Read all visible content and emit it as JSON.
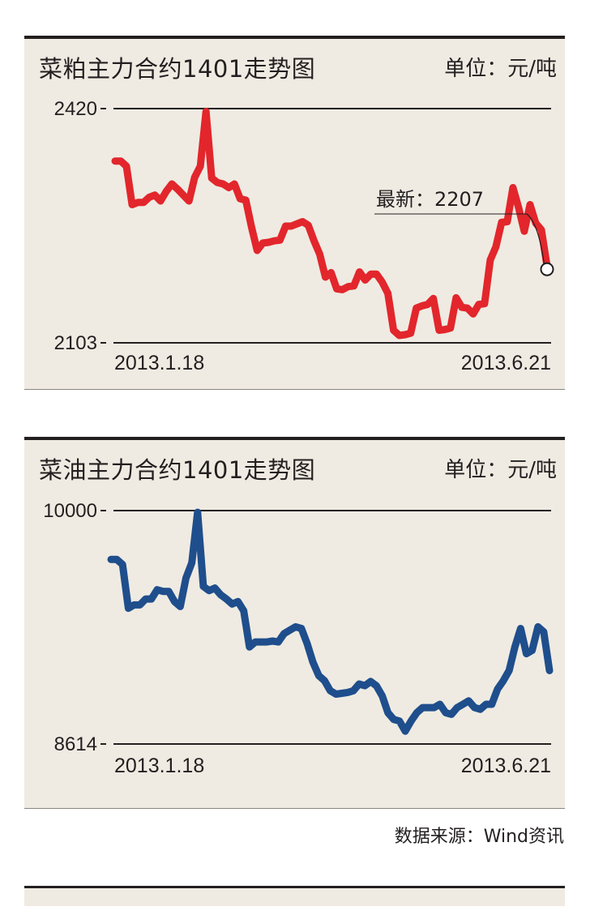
{
  "source": "数据来源：Wind资讯",
  "chart_data": [
    {
      "type": "line",
      "title": "菜粕主力合约1401走势图",
      "unit": "单位：元/吨",
      "ylim": [
        2103,
        2420
      ],
      "yticks": [
        "2420",
        "2103"
      ],
      "x_start_label": "2013.1.18",
      "x_end_label": "2013.6.21",
      "annotation": "最新：2207",
      "color": "#e2262c",
      "series": [
        {
          "values": [
            2349,
            2349,
            2342,
            2290,
            2293,
            2293,
            2300,
            2303,
            2295,
            2308,
            2318,
            2311,
            2303,
            2295,
            2327,
            2342,
            2416,
            2326,
            2320,
            2318,
            2313,
            2318,
            2298,
            2296,
            2260,
            2228,
            2238,
            2239,
            2241,
            2242,
            2261,
            2261,
            2264,
            2267,
            2262,
            2241,
            2223,
            2192,
            2198,
            2176,
            2175,
            2179,
            2180,
            2199,
            2188,
            2196,
            2196,
            2185,
            2170,
            2120,
            2113,
            2114,
            2116,
            2150,
            2153,
            2155,
            2163,
            2120,
            2121,
            2123,
            2164,
            2151,
            2150,
            2142,
            2155,
            2156,
            2215,
            2233,
            2266,
            2267,
            2313,
            2286,
            2254,
            2290,
            2265,
            2256,
            2207
          ]
        }
      ]
    },
    {
      "type": "line",
      "title": "菜油主力合约1401走势图",
      "unit": "单位：元/吨",
      "ylim": [
        8614,
        10000
      ],
      "yticks": [
        "10000",
        "8614"
      ],
      "x_start_label": "2013.1.18",
      "x_end_label": "2013.6.21",
      "color": "#1f4e8c",
      "series": [
        {
          "values": [
            9710,
            9710,
            9680,
            9420,
            9440,
            9440,
            9475,
            9475,
            9530,
            9520,
            9520,
            9460,
            9430,
            9600,
            9690,
            9990,
            9550,
            9525,
            9540,
            9500,
            9475,
            9445,
            9460,
            9405,
            9190,
            9220,
            9220,
            9220,
            9225,
            9220,
            9270,
            9290,
            9310,
            9300,
            9210,
            9100,
            9020,
            8990,
            8930,
            8910,
            8915,
            8920,
            8930,
            8970,
            8960,
            8985,
            8960,
            8900,
            8800,
            8760,
            8750,
            8690,
            8750,
            8800,
            8830,
            8830,
            8830,
            8850,
            8800,
            8790,
            8830,
            8850,
            8870,
            8830,
            8820,
            8850,
            8850,
            8940,
            8990,
            9050,
            9190,
            9300,
            9150,
            9170,
            9310,
            9280,
            9050
          ]
        }
      ]
    }
  ]
}
